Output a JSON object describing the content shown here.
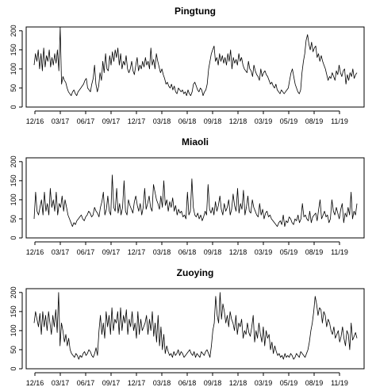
{
  "chart_data": [
    {
      "type": "line",
      "title": "Pingtung",
      "xlabel": "",
      "ylabel": "",
      "x_tick_labels": [
        "12/16",
        "03/17",
        "06/17",
        "09/17",
        "12/17",
        "03/18",
        "06/18",
        "09/18",
        "12/18",
        "03/19",
        "05/19",
        "08/19",
        "11/19"
      ],
      "y_ticks": [
        0,
        50,
        100,
        150,
        200
      ],
      "y_tick_labels": [
        "0",
        "50",
        "100",
        "150",
        "200"
      ],
      "ylim": [
        0,
        210
      ],
      "grid": false,
      "series": [
        {
          "values": [
            110,
            140,
            120,
            150,
            100,
            140,
            95,
            155,
            105,
            135,
            120,
            150,
            105,
            130,
            110,
            140,
            115,
            150,
            95,
            210,
            60,
            80,
            70,
            65,
            50,
            40,
            35,
            30,
            40,
            45,
            35,
            30,
            40,
            45,
            50,
            55,
            60,
            70,
            75,
            50,
            45,
            40,
            60,
            75,
            110,
            60,
            40,
            55,
            90,
            70,
            120,
            90,
            140,
            100,
            95,
            135,
            110,
            145,
            120,
            150,
            130,
            155,
            110,
            140,
            100,
            120,
            110,
            135,
            100,
            90,
            100,
            120,
            95,
            85,
            110,
            130,
            95,
            110,
            100,
            120,
            105,
            130,
            110,
            120,
            100,
            155,
            110,
            125,
            100,
            140,
            120,
            105,
            90,
            100,
            85,
            75,
            60,
            65,
            55,
            50,
            60,
            45,
            55,
            40,
            35,
            50,
            45,
            40,
            45,
            35,
            40,
            30,
            45,
            35,
            30,
            40,
            60,
            65,
            55,
            45,
            40,
            50,
            45,
            30,
            40,
            45,
            60,
            100,
            120,
            140,
            150,
            160,
            120,
            130,
            110,
            140,
            120,
            135,
            115,
            130,
            110,
            140,
            120,
            150,
            100,
            130,
            115,
            125,
            110,
            140,
            120,
            130,
            110,
            100,
            95,
            90,
            120,
            100,
            95,
            80,
            110,
            95,
            85,
            80,
            70,
            100,
            80,
            90,
            95,
            85,
            80,
            70,
            60,
            65,
            55,
            50,
            60,
            45,
            40,
            35,
            45,
            40,
            35,
            40,
            45,
            50,
            70,
            90,
            100,
            80,
            60,
            50,
            40,
            35,
            45,
            90,
            120,
            140,
            175,
            190,
            165,
            150,
            170,
            145,
            155,
            160,
            130,
            140,
            120,
            135,
            120,
            110,
            100,
            85,
            70,
            80,
            75,
            90,
            80,
            70,
            95,
            85,
            110,
            90,
            80,
            95,
            100,
            60,
            85,
            70,
            90,
            80,
            100,
            75,
            85,
            90
          ]
        }
      ]
    },
    {
      "type": "line",
      "title": "Miaoli",
      "xlabel": "",
      "ylabel": "",
      "x_tick_labels": [
        "12/16",
        "03/17",
        "06/17",
        "09/17",
        "12/17",
        "03/18",
        "06/18",
        "09/18",
        "12/18",
        "03/19",
        "05/19",
        "08/19",
        "11/19"
      ],
      "y_ticks": [
        0,
        50,
        100,
        150,
        200
      ],
      "y_tick_labels": [
        "0",
        "50",
        "100",
        "150",
        "200"
      ],
      "ylim": [
        0,
        210
      ],
      "grid": false,
      "series": [
        {
          "values": [
            50,
            120,
            70,
            60,
            80,
            100,
            60,
            120,
            70,
            90,
            60,
            130,
            80,
            100,
            70,
            120,
            60,
            90,
            80,
            110,
            70,
            100,
            80,
            60,
            50,
            40,
            30,
            40,
            35,
            45,
            50,
            55,
            60,
            50,
            45,
            55,
            60,
            70,
            65,
            55,
            60,
            80,
            70,
            65,
            55,
            80,
            95,
            120,
            60,
            75,
            110,
            70,
            60,
            165,
            80,
            70,
            130,
            65,
            90,
            60,
            80,
            150,
            70,
            60,
            100,
            85,
            75,
            65,
            95,
            110,
            85,
            70,
            90,
            60,
            80,
            130,
            75,
            90,
            110,
            80,
            70,
            140,
            120,
            100,
            90,
            75,
            110,
            80,
            150,
            85,
            100,
            70,
            95,
            80,
            105,
            70,
            85,
            60,
            75,
            65,
            70,
            55,
            60,
            50,
            120,
            60,
            70,
            155,
            80,
            60,
            55,
            65,
            50,
            60,
            45,
            55,
            70,
            60,
            140,
            75,
            65,
            80,
            60,
            95,
            70,
            85,
            110,
            75,
            60,
            90,
            70,
            80,
            100,
            60,
            75,
            115,
            85,
            70,
            130,
            65,
            90,
            75,
            125,
            60,
            80,
            110,
            70,
            65,
            100,
            80,
            70,
            60,
            55,
            90,
            60,
            75,
            50,
            65,
            70,
            55,
            60,
            50,
            45,
            40,
            35,
            30,
            40,
            45,
            35,
            60,
            30,
            45,
            40,
            55,
            50,
            40,
            35,
            50,
            45,
            60,
            40,
            50,
            90,
            55,
            60,
            50,
            45,
            70,
            40,
            55,
            60,
            65,
            45,
            75,
            100,
            50,
            60,
            70,
            55,
            60,
            40,
            50,
            100,
            70,
            60,
            80,
            65,
            50,
            75,
            90,
            40,
            65,
            55,
            80,
            60,
            120,
            50,
            70,
            60,
            90
          ]
        }
      ]
    },
    {
      "type": "line",
      "title": "Zuoying",
      "xlabel": "",
      "ylabel": "",
      "x_tick_labels": [
        "12/16",
        "03/17",
        "06/17",
        "09/17",
        "12/17",
        "03/18",
        "06/18",
        "09/18",
        "12/18",
        "03/19",
        "05/19",
        "08/19",
        "11/19"
      ],
      "y_ticks": [
        0,
        50,
        100,
        150,
        200
      ],
      "y_tick_labels": [
        "0",
        "50",
        "100",
        "150",
        "200"
      ],
      "ylim": [
        0,
        210
      ],
      "grid": false,
      "series": [
        {
          "values": [
            120,
            150,
            130,
            110,
            145,
            90,
            150,
            110,
            140,
            100,
            150,
            120,
            90,
            140,
            110,
            155,
            95,
            200,
            60,
            120,
            100,
            70,
            90,
            60,
            80,
            50,
            40,
            35,
            30,
            40,
            35,
            25,
            35,
            30,
            40,
            45,
            35,
            40,
            50,
            45,
            35,
            30,
            40,
            55,
            35,
            100,
            140,
            90,
            120,
            80,
            150,
            110,
            140,
            90,
            160,
            100,
            130,
            120,
            150,
            90,
            160,
            100,
            140,
            120,
            155,
            90,
            130,
            110,
            150,
            100,
            120,
            80,
            150,
            90,
            130,
            100,
            110,
            120,
            140,
            90,
            130,
            100,
            150,
            85,
            120,
            70,
            140,
            60,
            110,
            50,
            90,
            40,
            60,
            45,
            35,
            40,
            30,
            45,
            35,
            40,
            50,
            35,
            45,
            40,
            30,
            35,
            40,
            45,
            50,
            40,
            35,
            45,
            30,
            40,
            35,
            30,
            45,
            40,
            35,
            45,
            50,
            40,
            30,
            60,
            100,
            120,
            190,
            140,
            120,
            200,
            130,
            170,
            150,
            120,
            140,
            110,
            150,
            130,
            120,
            100,
            140,
            90,
            120,
            110,
            130,
            80,
            100,
            90,
            120,
            95,
            85,
            110,
            140,
            70,
            100,
            80,
            120,
            90,
            70,
            110,
            60,
            100,
            80,
            90,
            50,
            70,
            40,
            60,
            45,
            35,
            40,
            30,
            35,
            25,
            40,
            30,
            35,
            30,
            40,
            35,
            25,
            30,
            40,
            35,
            30,
            45,
            40,
            35,
            30,
            40,
            50,
            70,
            100,
            120,
            150,
            190,
            170,
            140,
            160,
            155,
            120,
            150,
            140,
            110,
            130,
            120,
            100,
            90,
            110,
            80,
            90,
            100,
            70,
            85,
            110,
            80,
            60,
            100,
            90,
            50,
            120,
            75,
            85,
            95,
            80
          ]
        }
      ]
    }
  ]
}
